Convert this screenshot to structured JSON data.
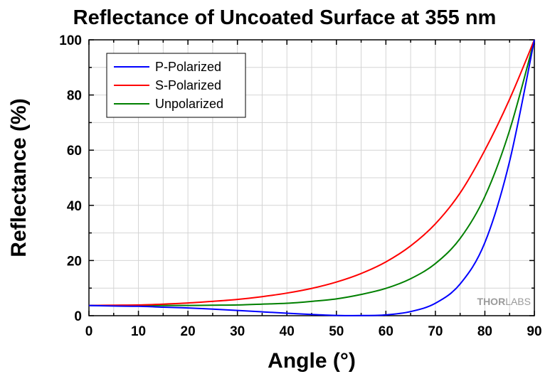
{
  "chart_data": {
    "type": "line",
    "title": "Reflectance of Uncoated Surface at 355 nm",
    "xlabel": "Angle (°)",
    "ylabel": "Reflectance (%)",
    "xlim": [
      0,
      90
    ],
    "ylim": [
      0,
      100
    ],
    "xticks": [
      0,
      10,
      20,
      30,
      40,
      50,
      60,
      70,
      80,
      90
    ],
    "yticks": [
      0,
      20,
      40,
      60,
      80,
      100
    ],
    "grid": true,
    "legend_position": "top-left",
    "x": [
      0,
      5,
      10,
      15,
      20,
      25,
      30,
      35,
      40,
      45,
      50,
      55,
      60,
      65,
      70,
      75,
      80,
      85,
      90
    ],
    "series": [
      {
        "name": "P-Polarized",
        "color": "#0000ff",
        "values": [
          3.7,
          3.5,
          3.4,
          3.1,
          2.8,
          2.4,
          1.9,
          1.4,
          0.9,
          0.45,
          0.1,
          0.05,
          0.3,
          1.5,
          4.5,
          11.5,
          26.5,
          56.0,
          100
        ]
      },
      {
        "name": "S-Polarized",
        "color": "#ff0000",
        "values": [
          3.7,
          3.8,
          3.9,
          4.2,
          4.6,
          5.2,
          5.9,
          6.9,
          8.2,
          9.9,
          12.2,
          15.3,
          19.5,
          25.3,
          33.3,
          44.5,
          60.0,
          78.5,
          100
        ]
      },
      {
        "name": "Unpolarized",
        "color": "#008000",
        "values": [
          3.7,
          3.7,
          3.7,
          3.7,
          3.7,
          3.8,
          3.9,
          4.2,
          4.5,
          5.2,
          6.1,
          7.7,
          9.9,
          13.4,
          18.9,
          28.0,
          43.2,
          67.2,
          100
        ]
      }
    ],
    "watermark": {
      "part1": "THOR",
      "part2": "LABS"
    }
  }
}
